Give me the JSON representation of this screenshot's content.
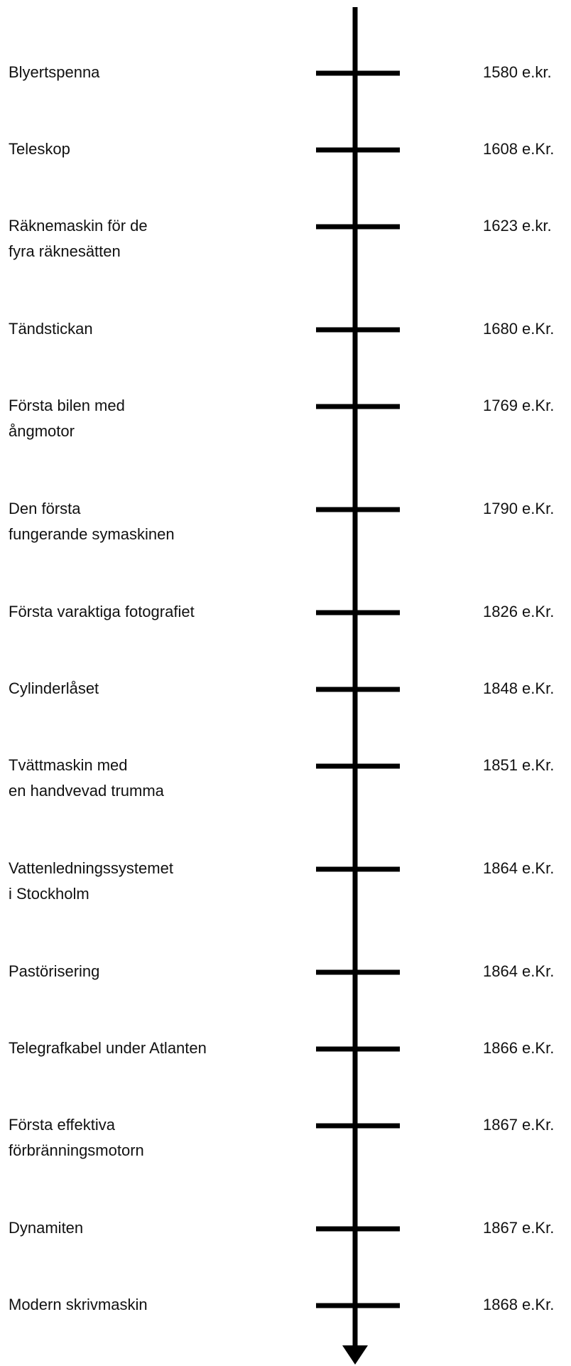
{
  "timeline": {
    "items": [
      {
        "label": [
          "Blyertspenna"
        ],
        "date": "1580 e.kr."
      },
      {
        "label": [
          "Teleskop"
        ],
        "date": "1608 e.Kr."
      },
      {
        "label": [
          "Räknemaskin för de",
          "fyra räknesätten"
        ],
        "date": "1623 e.kr."
      },
      {
        "label": [
          "Tändstickan"
        ],
        "date": "1680 e.Kr."
      },
      {
        "label": [
          "Första bilen med",
          "ångmotor"
        ],
        "date": "1769 e.Kr."
      },
      {
        "label": [
          "Den första",
          "fungerande symaskinen"
        ],
        "date": "1790 e.Kr."
      },
      {
        "label": [
          "Första varaktiga fotografiet"
        ],
        "date": "1826 e.Kr."
      },
      {
        "label": [
          "Cylinderlåset"
        ],
        "date": "1848 e.Kr."
      },
      {
        "label": [
          "Tvättmaskin med",
          "en handvevad trumma"
        ],
        "date": "1851 e.Kr."
      },
      {
        "label": [
          "Vattenledningssystemet",
          "i Stockholm"
        ],
        "date": "1864 e.Kr."
      },
      {
        "label": [
          "Pastörisering"
        ],
        "date": "1864 e.Kr."
      },
      {
        "label": [
          "Telegrafkabel under Atlanten"
        ],
        "date": "1866 e.Kr."
      },
      {
        "label": [
          "Första effektiva",
          "förbränningsmotorn"
        ],
        "date": "1867 e.Kr."
      },
      {
        "label": [
          "Dynamiten"
        ],
        "date": "1867 e.Kr."
      },
      {
        "label": [
          "Modern skrivmaskin"
        ],
        "date": "1868 e.Kr."
      }
    ]
  }
}
